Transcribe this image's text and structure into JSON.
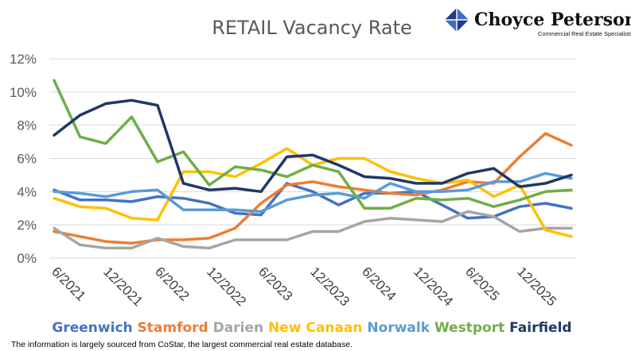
{
  "logo": {
    "name": "Choyce Peterson",
    "tagline": "Commercial Real Estate Specialists",
    "colors": [
      "#1f3b8c",
      "#3d6fc4",
      "#ffffff"
    ]
  },
  "footnote": "The information is largely sourced from CoStar, the largest commercial real estate database.",
  "chart_data": {
    "type": "line",
    "title": "RETAIL Vacancy Rate",
    "xlabel": "",
    "ylabel": "",
    "ylim": [
      0,
      12
    ],
    "yticks": [
      "0%",
      "2%",
      "4%",
      "6%",
      "8%",
      "10%",
      "12%"
    ],
    "xticks": [
      "6/2021",
      "12/2021",
      "6/2022",
      "12/2022",
      "6/2023",
      "12/2023",
      "6/2024",
      "12/2024",
      "6/2025",
      "12/2025"
    ],
    "grid": "horizontal",
    "legend": "bottom",
    "x_quarters": 20,
    "series": [
      {
        "name": "Greenwich",
        "color": "#4472c4",
        "values": [
          4.1,
          3.5,
          3.5,
          3.4,
          3.7,
          3.6,
          3.3,
          2.7,
          2.6,
          4.5,
          4.0,
          3.2,
          3.9,
          3.9,
          4.0,
          3.2,
          2.4,
          2.5,
          3.1,
          3.3,
          3.0
        ]
      },
      {
        "name": "Stamford",
        "color": "#ed7d31",
        "values": [
          1.6,
          1.3,
          1.0,
          0.9,
          1.1,
          1.1,
          1.2,
          1.8,
          3.3,
          4.4,
          4.6,
          4.3,
          4.1,
          3.9,
          3.8,
          4.1,
          4.6,
          4.5,
          6.1,
          7.5,
          6.8
        ]
      },
      {
        "name": "Darien",
        "color": "#a5a5a5",
        "values": [
          1.8,
          0.8,
          0.6,
          0.6,
          1.2,
          0.7,
          0.6,
          1.1,
          1.1,
          1.1,
          1.6,
          1.6,
          2.2,
          2.4,
          2.3,
          2.2,
          2.8,
          2.5,
          1.6,
          1.8,
          1.8
        ]
      },
      {
        "name": "New Canaan",
        "color": "#ffc000",
        "values": [
          3.6,
          3.1,
          3.0,
          2.4,
          2.3,
          5.2,
          5.2,
          4.9,
          5.7,
          6.6,
          5.6,
          6.0,
          6.0,
          5.2,
          4.8,
          4.5,
          4.7,
          3.7,
          4.4,
          1.7,
          1.3
        ]
      },
      {
        "name": "Norwalk",
        "color": "#5b9bd5",
        "values": [
          4.0,
          3.9,
          3.7,
          4.0,
          4.1,
          2.9,
          2.9,
          2.9,
          2.8,
          3.5,
          3.8,
          3.9,
          3.6,
          4.5,
          4.0,
          4.0,
          4.1,
          4.6,
          4.6,
          5.1,
          4.8
        ]
      },
      {
        "name": "Westport",
        "color": "#70ad47",
        "values": [
          10.7,
          7.3,
          6.9,
          8.5,
          5.8,
          6.4,
          4.4,
          5.5,
          5.3,
          4.9,
          5.6,
          5.2,
          3.0,
          3.0,
          3.6,
          3.5,
          3.6,
          3.1,
          3.5,
          4.0,
          4.1
        ]
      },
      {
        "name": "Fairfield",
        "color": "#203864",
        "values": [
          7.4,
          8.6,
          9.3,
          9.5,
          9.2,
          4.5,
          4.1,
          4.2,
          4.0,
          6.1,
          6.2,
          5.6,
          4.9,
          4.8,
          4.5,
          4.5,
          5.1,
          5.4,
          4.3,
          4.5,
          5.0
        ]
      }
    ]
  }
}
